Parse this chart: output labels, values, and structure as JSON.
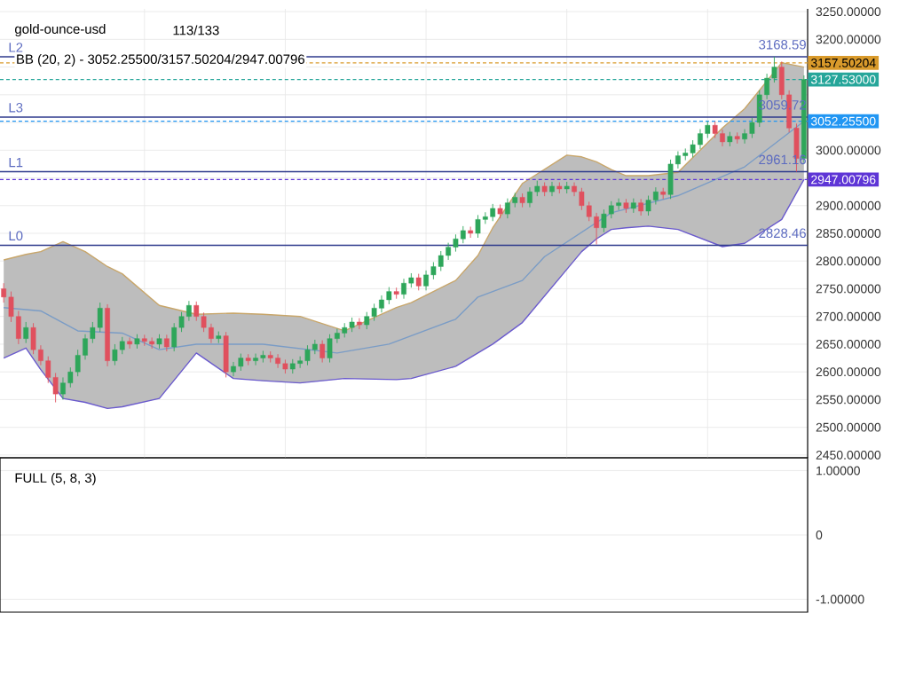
{
  "chart_data": [
    {
      "type": "candlestick",
      "title": "gold-ounce-usd",
      "subtitle": "113/133",
      "categories": [
        null,
        null,
        null,
        null,
        null,
        null,
        null,
        null,
        null,
        null,
        null,
        null,
        null,
        null,
        null,
        null,
        null,
        null,
        null,
        null,
        null,
        null,
        null,
        null,
        null,
        null,
        null,
        null,
        null,
        null,
        null,
        null,
        null,
        null,
        null,
        null,
        null,
        null,
        null,
        null,
        null,
        null,
        null,
        null,
        null,
        null,
        null,
        null,
        null,
        null,
        null,
        null,
        null,
        null,
        null,
        null,
        null,
        null,
        null,
        null,
        null,
        null,
        null,
        null,
        null,
        null,
        null,
        null,
        null,
        null,
        null,
        null,
        null,
        null,
        null,
        null,
        null,
        null,
        null,
        null,
        null,
        null,
        null,
        null,
        null,
        null,
        null,
        null,
        null,
        null,
        null,
        null,
        null,
        null,
        null,
        null,
        null,
        null,
        null,
        null,
        null,
        null,
        null,
        null,
        null,
        null,
        null,
        null,
        null
      ],
      "ohlc": [
        [
          2750,
          2760,
          2725,
          2735
        ],
        [
          2735,
          2745,
          2690,
          2700
        ],
        [
          2700,
          2710,
          2650,
          2660
        ],
        [
          2660,
          2690,
          2652,
          2680
        ],
        [
          2680,
          2688,
          2632,
          2640
        ],
        [
          2640,
          2648,
          2612,
          2620
        ],
        [
          2620,
          2628,
          2580,
          2590
        ],
        [
          2590,
          2598,
          2545,
          2560
        ],
        [
          2560,
          2590,
          2550,
          2580
        ],
        [
          2580,
          2608,
          2572,
          2600
        ],
        [
          2600,
          2640,
          2592,
          2630
        ],
        [
          2630,
          2668,
          2622,
          2660
        ],
        [
          2660,
          2690,
          2652,
          2680
        ],
        [
          2680,
          2725,
          2672,
          2715
        ],
        [
          2715,
          2722,
          2610,
          2620
        ],
        [
          2620,
          2650,
          2612,
          2640
        ],
        [
          2640,
          2663,
          2632,
          2655
        ],
        [
          2655,
          2662,
          2642,
          2650
        ],
        [
          2650,
          2668,
          2642,
          2660
        ],
        [
          2660,
          2667,
          2647,
          2655
        ],
        [
          2655,
          2662,
          2642,
          2650
        ],
        [
          2650,
          2668,
          2642,
          2660
        ],
        [
          2660,
          2667,
          2637,
          2645
        ],
        [
          2645,
          2688,
          2637,
          2680
        ],
        [
          2680,
          2708,
          2672,
          2700
        ],
        [
          2700,
          2728,
          2692,
          2720
        ],
        [
          2720,
          2727,
          2692,
          2700
        ],
        [
          2700,
          2707,
          2672,
          2680
        ],
        [
          2680,
          2687,
          2652,
          2660
        ],
        [
          2660,
          2673,
          2652,
          2665
        ],
        [
          2665,
          2672,
          2590,
          2600
        ],
        [
          2600,
          2618,
          2592,
          2610
        ],
        [
          2610,
          2633,
          2602,
          2625
        ],
        [
          2625,
          2632,
          2612,
          2620
        ],
        [
          2620,
          2633,
          2612,
          2625
        ],
        [
          2625,
          2638,
          2617,
          2630
        ],
        [
          2630,
          2637,
          2617,
          2625
        ],
        [
          2625,
          2632,
          2607,
          2615
        ],
        [
          2615,
          2622,
          2597,
          2605
        ],
        [
          2605,
          2623,
          2597,
          2615
        ],
        [
          2615,
          2628,
          2607,
          2620
        ],
        [
          2620,
          2648,
          2612,
          2640
        ],
        [
          2640,
          2658,
          2632,
          2650
        ],
        [
          2650,
          2657,
          2617,
          2625
        ],
        [
          2625,
          2668,
          2617,
          2660
        ],
        [
          2660,
          2678,
          2652,
          2670
        ],
        [
          2670,
          2688,
          2662,
          2680
        ],
        [
          2680,
          2698,
          2672,
          2690
        ],
        [
          2690,
          2697,
          2677,
          2685
        ],
        [
          2685,
          2708,
          2677,
          2700
        ],
        [
          2700,
          2723,
          2692,
          2715
        ],
        [
          2715,
          2738,
          2707,
          2730
        ],
        [
          2730,
          2753,
          2722,
          2745
        ],
        [
          2745,
          2752,
          2732,
          2740
        ],
        [
          2740,
          2768,
          2732,
          2760
        ],
        [
          2760,
          2778,
          2752,
          2770
        ],
        [
          2770,
          2777,
          2747,
          2755
        ],
        [
          2755,
          2783,
          2747,
          2775
        ],
        [
          2775,
          2798,
          2767,
          2790
        ],
        [
          2790,
          2818,
          2782,
          2810
        ],
        [
          2810,
          2833,
          2802,
          2825
        ],
        [
          2825,
          2848,
          2817,
          2840
        ],
        [
          2840,
          2863,
          2832,
          2855
        ],
        [
          2855,
          2862,
          2842,
          2850
        ],
        [
          2850,
          2883,
          2842,
          2875
        ],
        [
          2875,
          2888,
          2867,
          2880
        ],
        [
          2880,
          2903,
          2872,
          2895
        ],
        [
          2895,
          2902,
          2877,
          2885
        ],
        [
          2885,
          2913,
          2877,
          2905
        ],
        [
          2905,
          2923,
          2897,
          2915
        ],
        [
          2915,
          2922,
          2897,
          2905
        ],
        [
          2905,
          2933,
          2897,
          2925
        ],
        [
          2925,
          2945,
          2917,
          2935
        ],
        [
          2935,
          2942,
          2917,
          2925
        ],
        [
          2925,
          2943,
          2917,
          2935
        ],
        [
          2935,
          2942,
          2922,
          2930
        ],
        [
          2930,
          2943,
          2922,
          2935
        ],
        [
          2935,
          2942,
          2917,
          2925
        ],
        [
          2925,
          2932,
          2892,
          2900
        ],
        [
          2900,
          2907,
          2872,
          2880
        ],
        [
          2880,
          2887,
          2830,
          2860
        ],
        [
          2860,
          2893,
          2852,
          2885
        ],
        [
          2885,
          2908,
          2877,
          2900
        ],
        [
          2900,
          2913,
          2892,
          2905
        ],
        [
          2905,
          2912,
          2887,
          2895
        ],
        [
          2895,
          2913,
          2887,
          2905
        ],
        [
          2905,
          2912,
          2882,
          2890
        ],
        [
          2890,
          2918,
          2882,
          2910
        ],
        [
          2910,
          2933,
          2902,
          2925
        ],
        [
          2925,
          2932,
          2912,
          2920
        ],
        [
          2920,
          2983,
          2912,
          2975
        ],
        [
          2975,
          2998,
          2967,
          2990
        ],
        [
          2990,
          3003,
          2982,
          2995
        ],
        [
          2995,
          3018,
          2987,
          3010
        ],
        [
          3010,
          3038,
          3002,
          3030
        ],
        [
          3030,
          3052,
          3022,
          3045
        ],
        [
          3045,
          3052,
          3022,
          3030
        ],
        [
          3030,
          3037,
          3007,
          3015
        ],
        [
          3015,
          3033,
          3007,
          3025
        ],
        [
          3025,
          3032,
          3012,
          3020
        ],
        [
          3020,
          3038,
          3012,
          3030
        ],
        [
          3030,
          3058,
          3022,
          3050
        ],
        [
          3050,
          3108,
          3042,
          3100
        ],
        [
          3100,
          3138,
          3092,
          3130
        ],
        [
          3130,
          3168.59,
          3122,
          3150
        ],
        [
          3150,
          3160,
          3092,
          3100
        ],
        [
          3100,
          3108,
          3032,
          3040
        ],
        [
          3040,
          3048,
          2961.16,
          2985
        ],
        [
          2985,
          3135,
          2977,
          3127.53
        ]
      ],
      "series": [
        {
          "type": "line",
          "color": "#c8a66a",
          "values": [
            2802,
            null,
            null,
            2812,
            null,
            2817,
            null,
            null,
            2835,
            null,
            null,
            2817,
            null,
            null,
            2790,
            null,
            2777,
            null,
            null,
            null,
            null,
            2720,
            null,
            null,
            null,
            null,
            2704,
            null,
            null,
            null,
            null,
            2706,
            null,
            null,
            null,
            2704,
            null,
            null,
            null,
            null,
            2700,
            null,
            null,
            null,
            null,
            null,
            2674,
            null,
            null,
            null,
            null,
            null,
            null,
            2716,
            null,
            2725,
            null,
            null,
            null,
            null,
            null,
            2765,
            null,
            null,
            2810,
            null,
            2860,
            null,
            null,
            null,
            2940,
            null,
            null,
            null,
            null,
            null,
            2991,
            null,
            2988,
            null,
            2979,
            null,
            2965,
            null,
            2954,
            null,
            null,
            2954,
            null,
            null,
            null,
            2960,
            null,
            null,
            null,
            null,
            null,
            3040,
            null,
            null,
            3075,
            null,
            null,
            null,
            null,
            3158,
            null,
            null,
            3150
          ]
        },
        {
          "type": "line",
          "color": "#6a5acd",
          "values": [
            2625,
            null,
            null,
            2643,
            null,
            2604,
            null,
            null,
            2552,
            null,
            null,
            2545,
            null,
            null,
            2534,
            null,
            2537,
            null,
            null,
            null,
            null,
            2552,
            null,
            null,
            null,
            null,
            2634,
            null,
            null,
            null,
            null,
            2588,
            null,
            null,
            null,
            2584,
            null,
            null,
            null,
            null,
            2580,
            null,
            null,
            null,
            null,
            null,
            2588,
            null,
            null,
            null,
            null,
            null,
            null,
            2586,
            null,
            2588,
            null,
            null,
            null,
            null,
            null,
            2610,
            null,
            null,
            2634,
            null,
            2650,
            null,
            null,
            null,
            2689,
            null,
            null,
            null,
            null,
            null,
            2785,
            null,
            2817,
            null,
            2840,
            null,
            2857,
            null,
            2860,
            null,
            null,
            2863,
            null,
            null,
            null,
            2857,
            null,
            null,
            null,
            null,
            null,
            2826,
            null,
            null,
            2832,
            null,
            null,
            null,
            null,
            2875,
            null,
            null,
            2947
          ]
        },
        {
          "type": "line",
          "color": "#7a9cc6",
          "upper": [
            2802,
            null,
            null,
            2812,
            null,
            2817,
            null,
            null,
            2835,
            null,
            null,
            2817,
            null,
            null,
            2790,
            null,
            2777,
            null,
            null,
            null,
            null,
            2720,
            null,
            null,
            null,
            null,
            2704,
            null,
            null,
            null,
            null,
            2706,
            null,
            null,
            null,
            2704,
            null,
            null,
            null,
            null,
            2700,
            null,
            null,
            null,
            null,
            null,
            2674,
            null,
            null,
            null,
            null,
            null,
            null,
            2716,
            null,
            2725,
            null,
            null,
            null,
            null,
            null,
            2765,
            null,
            null,
            2810,
            null,
            2860,
            null,
            null,
            null,
            2940,
            null,
            null,
            null,
            null,
            null,
            2991,
            null,
            2988,
            null,
            2979,
            null,
            2965,
            null,
            2954,
            null,
            null,
            2954,
            null,
            null,
            null,
            2960,
            null,
            null,
            null,
            null,
            null,
            3040,
            null,
            null,
            3075,
            null,
            null,
            null,
            null,
            3158,
            null,
            null,
            3150
          ],
          "lower": [
            2625,
            null,
            null,
            2643,
            null,
            2604,
            null,
            null,
            2552,
            null,
            null,
            2545,
            null,
            null,
            2534,
            null,
            2537,
            null,
            null,
            null,
            null,
            2552,
            null,
            null,
            null,
            null,
            2634,
            null,
            null,
            null,
            null,
            2588,
            null,
            null,
            null,
            2584,
            null,
            null,
            null,
            null,
            2580,
            null,
            null,
            null,
            null,
            null,
            2588,
            null,
            null,
            null,
            null,
            null,
            null,
            2586,
            null,
            2588,
            null,
            null,
            null,
            null,
            null,
            2610,
            null,
            null,
            2634,
            null,
            2650,
            null,
            null,
            null,
            2689,
            null,
            null,
            null,
            null,
            null,
            2785,
            null,
            2817,
            null,
            2840,
            null,
            2857,
            null,
            2860,
            null,
            null,
            2863,
            null,
            null,
            null,
            2857,
            null,
            null,
            null,
            null,
            null,
            2826,
            null,
            null,
            2832,
            null,
            null,
            null,
            null,
            2875,
            null,
            null,
            2947
          ],
          "values": [
            2716,
            null,
            null,
            null,
            null,
            2710,
            null,
            null,
            null,
            null,
            2674,
            null,
            null,
            null,
            null,
            null,
            2670,
            null,
            null,
            null,
            null,
            2640,
            null,
            null,
            null,
            null,
            2650,
            null,
            null,
            null,
            null,
            null,
            null,
            null,
            null,
            2650,
            null,
            null,
            null,
            null,
            null,
            null,
            null,
            null,
            null,
            2634,
            null,
            null,
            null,
            null,
            null,
            null,
            2650,
            null,
            null,
            null,
            null,
            null,
            null,
            null,
            null,
            2695,
            null,
            null,
            2735,
            null,
            null,
            null,
            null,
            null,
            2765,
            null,
            null,
            2808,
            null,
            null,
            null,
            null,
            null,
            null,
            null,
            null,
            2887,
            null,
            null,
            null,
            null,
            null,
            null,
            null,
            null,
            2918,
            null,
            null,
            null,
            null,
            null,
            null,
            null,
            null,
            2970,
            null,
            null,
            null,
            null,
            null,
            null,
            null,
            3052
          ]
        }
      ],
      "ylim": [
        2445,
        3255
      ],
      "yticks": [
        {
          "value": 2450,
          "label": "2450.00000"
        },
        {
          "value": 2500,
          "label": "2500.00000"
        },
        {
          "value": 2550,
          "label": "2550.00000"
        },
        {
          "value": 2600,
          "label": "2600.00000"
        },
        {
          "value": 2650,
          "label": "2650.00000"
        },
        {
          "value": 2700,
          "label": "2700.00000"
        },
        {
          "value": 2750,
          "label": "2750.00000"
        },
        {
          "value": 2800,
          "label": "2800.00000"
        },
        {
          "value": 2850,
          "label": "2850.00000"
        },
        {
          "value": 2900,
          "label": "2900.00000"
        },
        {
          "value": 2950,
          "label": null
        },
        {
          "value": 3000,
          "label": "3000.00000"
        },
        {
          "value": 3050,
          "label": null
        },
        {
          "value": 3100,
          "label": null
        },
        {
          "value": 3150,
          "label": null
        },
        {
          "value": 3200,
          "label": "3200.00000"
        },
        {
          "value": 3250,
          "label": "3250.00000"
        }
      ],
      "grid": true,
      "tick_labels": "y",
      "ref_lines": [
        {
          "axis": "y",
          "value": 3168.59,
          "label": "L2",
          "color": "#2e3a8c"
        },
        {
          "axis": "y",
          "value": 3059.72,
          "label": "L3",
          "color": "#2e3a8c"
        },
        {
          "axis": "y",
          "value": 2961.16,
          "label": "L1",
          "color": "#2e3a8c"
        },
        {
          "axis": "y",
          "value": 2828.46,
          "label": "L0",
          "color": "#2e3a8c"
        },
        {
          "axis": "y",
          "value": 3157.50204,
          "label": "3157.50204",
          "color": "#d99a2b",
          "line_style": "dashed"
        },
        {
          "axis": "y",
          "value": 3127.53,
          "label": "3127.53000",
          "color": "#26a69a",
          "line_style": "dashed"
        },
        {
          "axis": "y",
          "value": 3052.255,
          "label": "3052.25500",
          "color": "#2196f3",
          "line_style": "dashed"
        },
        {
          "axis": "y",
          "value": 2947.00796,
          "label": "2947.00796",
          "color": "#5e35d6",
          "line_style": "dashed"
        }
      ],
      "annotations": [
        "BB (20, 2) - 3052.25500/3157.50204/2947.00796",
        {
          "text": "3168.59",
          "y": 3168.59
        },
        {
          "text": "3059.72",
          "y": 3059.72
        },
        {
          "text": "2961.16",
          "y": 2961.16
        },
        {
          "text": "2828.46",
          "y": 2828.46
        }
      ]
    },
    {
      "type": "line",
      "title": "FULL (5, 8, 3)",
      "categories": [
        null,
        null,
        null,
        null,
        null,
        null,
        null,
        null,
        null,
        null,
        null,
        null,
        null,
        null,
        null,
        null,
        null,
        null,
        null,
        null,
        null,
        null,
        null,
        null,
        null,
        null,
        null,
        null,
        null,
        null,
        null,
        null,
        null,
        null,
        null,
        null,
        null,
        null,
        null,
        null,
        null,
        null,
        null,
        null,
        null,
        null,
        null,
        null,
        null,
        null,
        null,
        null,
        null,
        null,
        null,
        null,
        null,
        null,
        null,
        null,
        null,
        null,
        null,
        null,
        null,
        null,
        null,
        null,
        null,
        null,
        null,
        null,
        null,
        null,
        null,
        null,
        null,
        null,
        null,
        null,
        null,
        null,
        null,
        null,
        null,
        null,
        null,
        null,
        null,
        null,
        null,
        null,
        null,
        null,
        null,
        null,
        null,
        null,
        null,
        null,
        null,
        null,
        null,
        null,
        null,
        null,
        null,
        null,
        null
      ],
      "ylim": [
        -1.2,
        1.2
      ],
      "yticks": [
        {
          "value": 1,
          "label": "1.00000"
        },
        0,
        {
          "value": -1,
          "label": "-1.00000"
        }
      ],
      "grid": "y",
      "tick_labels": "y"
    }
  ]
}
